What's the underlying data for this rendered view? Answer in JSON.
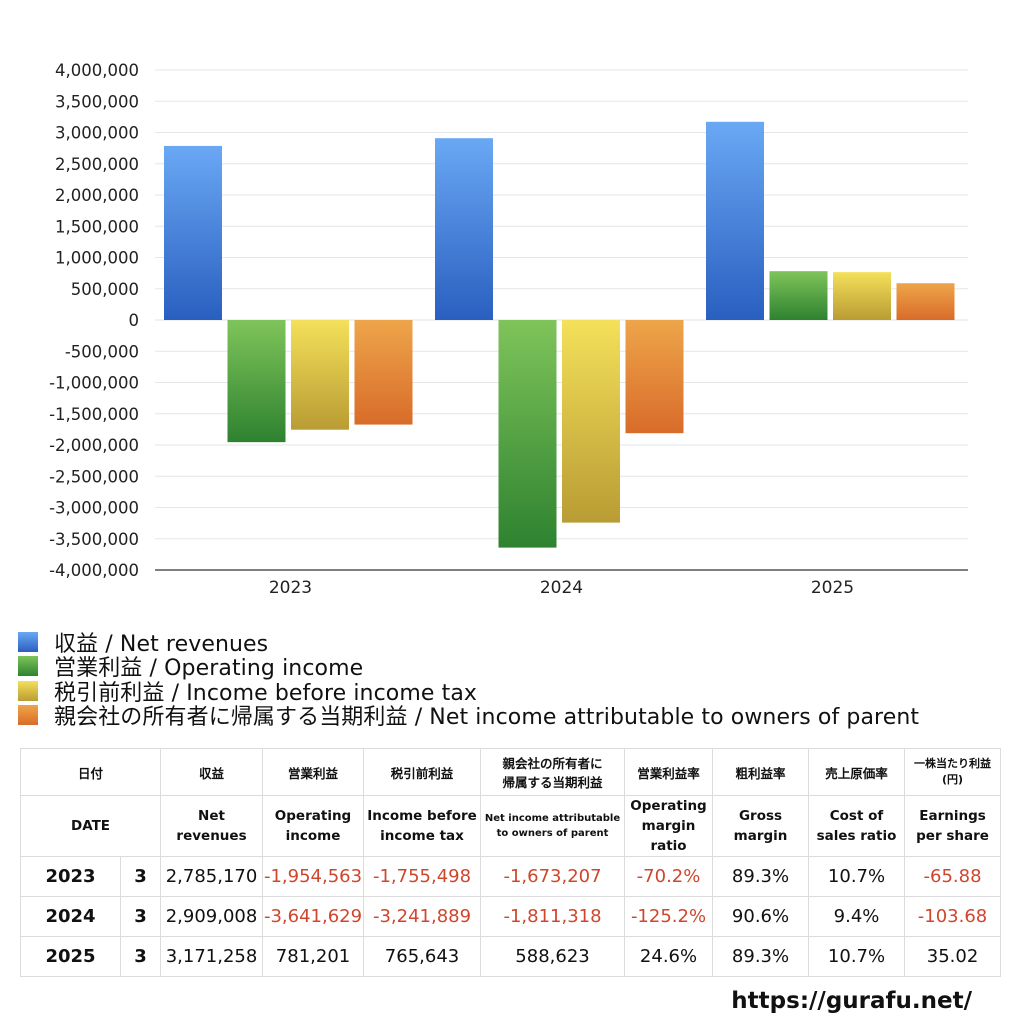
{
  "chart_data": {
    "type": "bar",
    "categories": [
      "2023",
      "2024",
      "2025"
    ],
    "ylim": [
      -4000000,
      4000000
    ],
    "ytick_step": 500000,
    "yticks": [
      "4,000,000",
      "3,500,000",
      "3,000,000",
      "2,500,000",
      "2,000,000",
      "1,500,000",
      "1,000,000",
      "500,000",
      "0",
      "-500,000",
      "-1,000,000",
      "-1,500,000",
      "-2,000,000",
      "-2,500,000",
      "-3,000,000",
      "-3,500,000",
      "-4,000,000"
    ],
    "grid": true,
    "legend_position": "bottom-left",
    "series": [
      {
        "name": "収益 / Net revenues",
        "color": "#3c7de0",
        "color_light": "#6aa8f4",
        "color_dark": "#2a5fc0",
        "values": [
          2785170,
          2909008,
          3171258
        ]
      },
      {
        "name": "営業利益 / Operating income",
        "color": "#4a9a3e",
        "color_light": "#7fc45a",
        "color_dark": "#2e8230",
        "values": [
          -1954563,
          -3641629,
          781201
        ]
      },
      {
        "name": "税引前利益 / Income before income tax",
        "color": "#d9c23a",
        "color_light": "#f4e05a",
        "color_dark": "#b99c34",
        "values": [
          -1755498,
          -3241889,
          765643
        ]
      },
      {
        "name": "親会社の所有者に帰属する当期利益 / Net income attributable to owners of parent",
        "color": "#e07f30",
        "color_light": "#eea54a",
        "color_dark": "#d86c2a",
        "values": [
          -1673207,
          -1811318,
          588623
        ]
      }
    ]
  },
  "table": {
    "header_jp": {
      "date": "日付",
      "revenue": "収益",
      "operating_income": "営業利益",
      "pretax_income": "税引前利益",
      "net_income_line1": "親会社の所有者に",
      "net_income_line2": "帰属する当期利益",
      "op_margin": "営業利益率",
      "gross_margin": "粗利益率",
      "cost_ratio": "売上原価率",
      "eps_line1": "一株当たり利益",
      "eps_line2": "(円)"
    },
    "header_en": {
      "date": "DATE",
      "revenue": "Net revenues",
      "operating_income_line1": "Operating",
      "operating_income_line2": "income",
      "pretax_income_line1": "Income before",
      "pretax_income_line2": "income tax",
      "net_income_line1": "Net income attributable",
      "net_income_line2": "to owners of parent",
      "op_margin_line1": "Operating",
      "op_margin_line2": "margin",
      "op_margin_line3": "ratio",
      "gross_margin_line1": "Gross",
      "gross_margin_line2": "margin",
      "cost_ratio_line1": "Cost of",
      "cost_ratio_line2": "sales ratio",
      "eps_line1": "Earnings",
      "eps_line2": "per share"
    },
    "rows": [
      {
        "year": "2023",
        "month": "3",
        "revenue": "2,785,170",
        "operating_income": "-1,954,563",
        "pretax_income": "-1,755,498",
        "net_income": "-1,673,207",
        "op_margin": "-70.2%",
        "gross_margin": "89.3%",
        "cost_ratio": "10.7%",
        "eps": "-65.88"
      },
      {
        "year": "2024",
        "month": "3",
        "revenue": "2,909,008",
        "operating_income": "-3,641,629",
        "pretax_income": "-3,241,889",
        "net_income": "-1,811,318",
        "op_margin": "-125.2%",
        "gross_margin": "90.6%",
        "cost_ratio": "9.4%",
        "eps": "-103.68"
      },
      {
        "year": "2025",
        "month": "3",
        "revenue": "3,171,258",
        "operating_income": "781,201",
        "pretax_income": "765,643",
        "net_income": "588,623",
        "op_margin": "24.6%",
        "gross_margin": "89.3%",
        "cost_ratio": "10.7%",
        "eps": "35.02"
      }
    ]
  },
  "footer": {
    "url": "https://gurafu.net/"
  }
}
